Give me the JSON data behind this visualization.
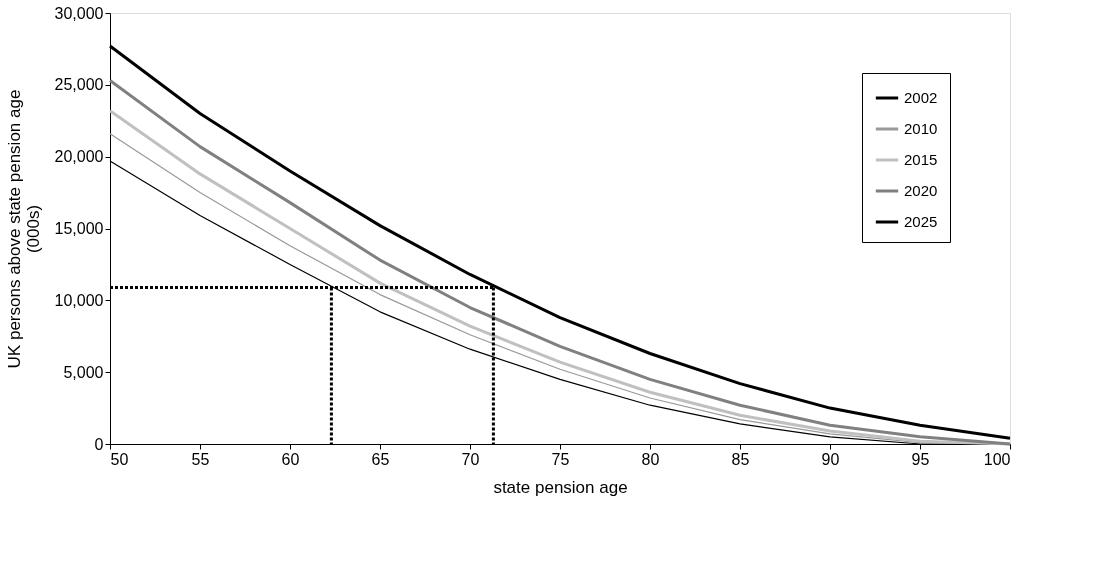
{
  "chart_data": {
    "type": "line",
    "xlabel": "state pension age",
    "ylabel": "UK persons above state pension age\n(000s)",
    "xlim": [
      50,
      100
    ],
    "xticks": [
      50,
      55,
      60,
      65,
      70,
      75,
      80,
      85,
      90,
      95,
      100
    ],
    "ylim": [
      0,
      30000
    ],
    "yticks": [
      0,
      {
        "value": 5000,
        "label": "5,000"
      },
      {
        "value": 10000,
        "label": "10,000"
      },
      {
        "value": 15000,
        "label": "15,000"
      },
      {
        "value": 20000,
        "label": "20,000"
      },
      {
        "value": 25000,
        "label": "25,000"
      },
      {
        "value": 30000,
        "label": "30,000"
      }
    ],
    "grid": false,
    "legend": "top right",
    "x": [
      50,
      55,
      60,
      65,
      70,
      75,
      80,
      85,
      90,
      95,
      100
    ],
    "series": [
      {
        "name": "2002",
        "color": "#000000",
        "values": [
          19700,
          15900,
          12500,
          9200,
          6600,
          4500,
          2700,
          1400,
          500,
          0,
          0
        ]
      },
      {
        "name": "2010",
        "color": "#999999",
        "values": [
          21600,
          17500,
          13800,
          10400,
          7600,
          5200,
          3200,
          1700,
          700,
          100,
          0
        ]
      },
      {
        "name": "2015",
        "color": "#c0c0c0",
        "values": [
          23200,
          18800,
          15000,
          11200,
          8200,
          5700,
          3600,
          2000,
          900,
          200,
          0
        ]
      },
      {
        "name": "2020",
        "color": "#808080",
        "values": [
          25300,
          20700,
          16800,
          12800,
          9500,
          6800,
          4500,
          2700,
          1300,
          500,
          0
        ]
      },
      {
        "name": "2025",
        "color": "#000000",
        "values": [
          27700,
          23000,
          19000,
          15200,
          11800,
          8800,
          6300,
          4200,
          2500,
          1300,
          400
        ]
      },
      {
        "color": "#000000",
        "line_style": "dotted",
        "x": [
          50,
          71.3
        ],
        "values": [
          10900,
          10900
        ]
      },
      {
        "color": "#000000",
        "line_style": "dotted",
        "x": [
          62.3,
          62.3
        ],
        "values": [
          10900,
          0
        ]
      },
      {
        "color": "#000000",
        "line_style": "dotted",
        "x": [
          71.3,
          71.3
        ],
        "values": [
          10900,
          0
        ]
      }
    ]
  }
}
